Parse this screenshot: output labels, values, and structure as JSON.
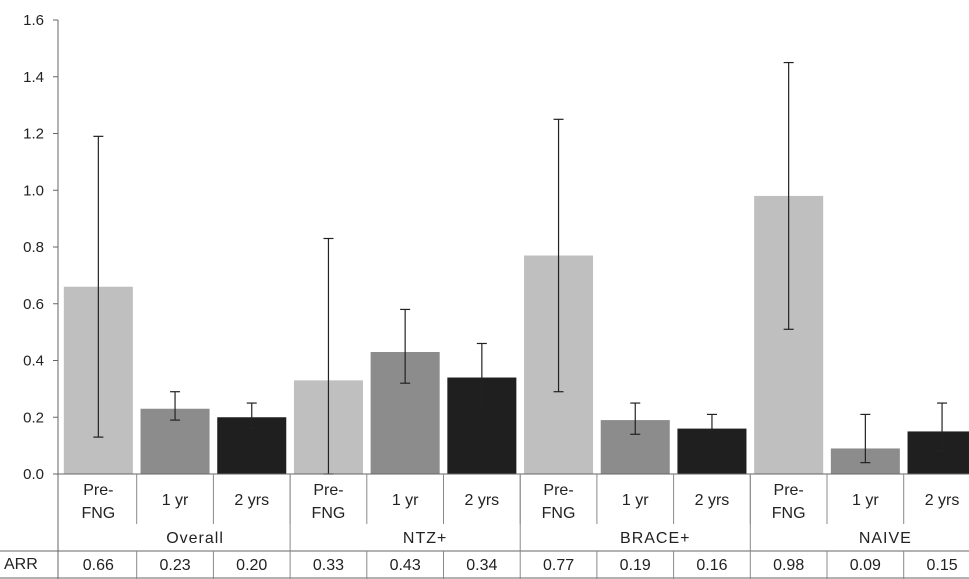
{
  "chart_data": {
    "type": "bar",
    "title": "",
    "xlabel": "",
    "ylabel": "",
    "ylim": [
      0,
      1.6
    ],
    "yticks": [
      "0.0",
      "0.2",
      "0.4",
      "0.6",
      "0.8",
      "1.0",
      "1.2",
      "1.4",
      "1.6"
    ],
    "grid": false,
    "groups": [
      {
        "name": "Overall",
        "bars": [
          {
            "label": [
              "Pre-",
              "FNG"
            ],
            "value": 0.66,
            "err_low": 0.13,
            "err_high": 1.19,
            "arr": "0.66",
            "color": "#bfbfbf"
          },
          {
            "label": [
              "1 yr"
            ],
            "value": 0.23,
            "err_low": 0.19,
            "err_high": 0.29,
            "arr": "0.23",
            "color": "#8c8c8c"
          },
          {
            "label": [
              "2 yrs"
            ],
            "value": 0.2,
            "err_low": 0.16,
            "err_high": 0.25,
            "arr": "0.20",
            "color": "#1f1f1f"
          }
        ]
      },
      {
        "name": "NTZ+",
        "bars": [
          {
            "label": [
              "Pre-",
              "FNG"
            ],
            "value": 0.33,
            "err_low": 0.0,
            "err_high": 0.83,
            "arr": "0.33",
            "color": "#bfbfbf"
          },
          {
            "label": [
              "1 yr"
            ],
            "value": 0.43,
            "err_low": 0.32,
            "err_high": 0.58,
            "arr": "0.43",
            "color": "#8c8c8c"
          },
          {
            "label": [
              "2 yrs"
            ],
            "value": 0.34,
            "err_low": 0.24,
            "err_high": 0.46,
            "arr": "0.34",
            "color": "#1f1f1f"
          }
        ]
      },
      {
        "name": "BRACE+",
        "bars": [
          {
            "label": [
              "Pre-",
              "FNG"
            ],
            "value": 0.77,
            "err_low": 0.29,
            "err_high": 1.25,
            "arr": "0.77",
            "color": "#bfbfbf"
          },
          {
            "label": [
              "1 yr"
            ],
            "value": 0.19,
            "err_low": 0.14,
            "err_high": 0.25,
            "arr": "0.19",
            "color": "#8c8c8c"
          },
          {
            "label": [
              "2 yrs"
            ],
            "value": 0.16,
            "err_low": 0.12,
            "err_high": 0.21,
            "arr": "0.16",
            "color": "#1f1f1f"
          }
        ]
      },
      {
        "name": "NAIVE",
        "bars": [
          {
            "label": [
              "Pre-",
              "FNG"
            ],
            "value": 0.98,
            "err_low": 0.51,
            "err_high": 1.45,
            "arr": "0.98",
            "color": "#bfbfbf"
          },
          {
            "label": [
              "1 yr"
            ],
            "value": 0.09,
            "err_low": 0.04,
            "err_high": 0.21,
            "arr": "0.09",
            "color": "#8c8c8c"
          },
          {
            "label": [
              "2 yrs"
            ],
            "value": 0.15,
            "err_low": 0.08,
            "err_high": 0.25,
            "arr": "0.15",
            "color": "#1f1f1f"
          }
        ]
      }
    ],
    "table_row_label": "ARR"
  }
}
